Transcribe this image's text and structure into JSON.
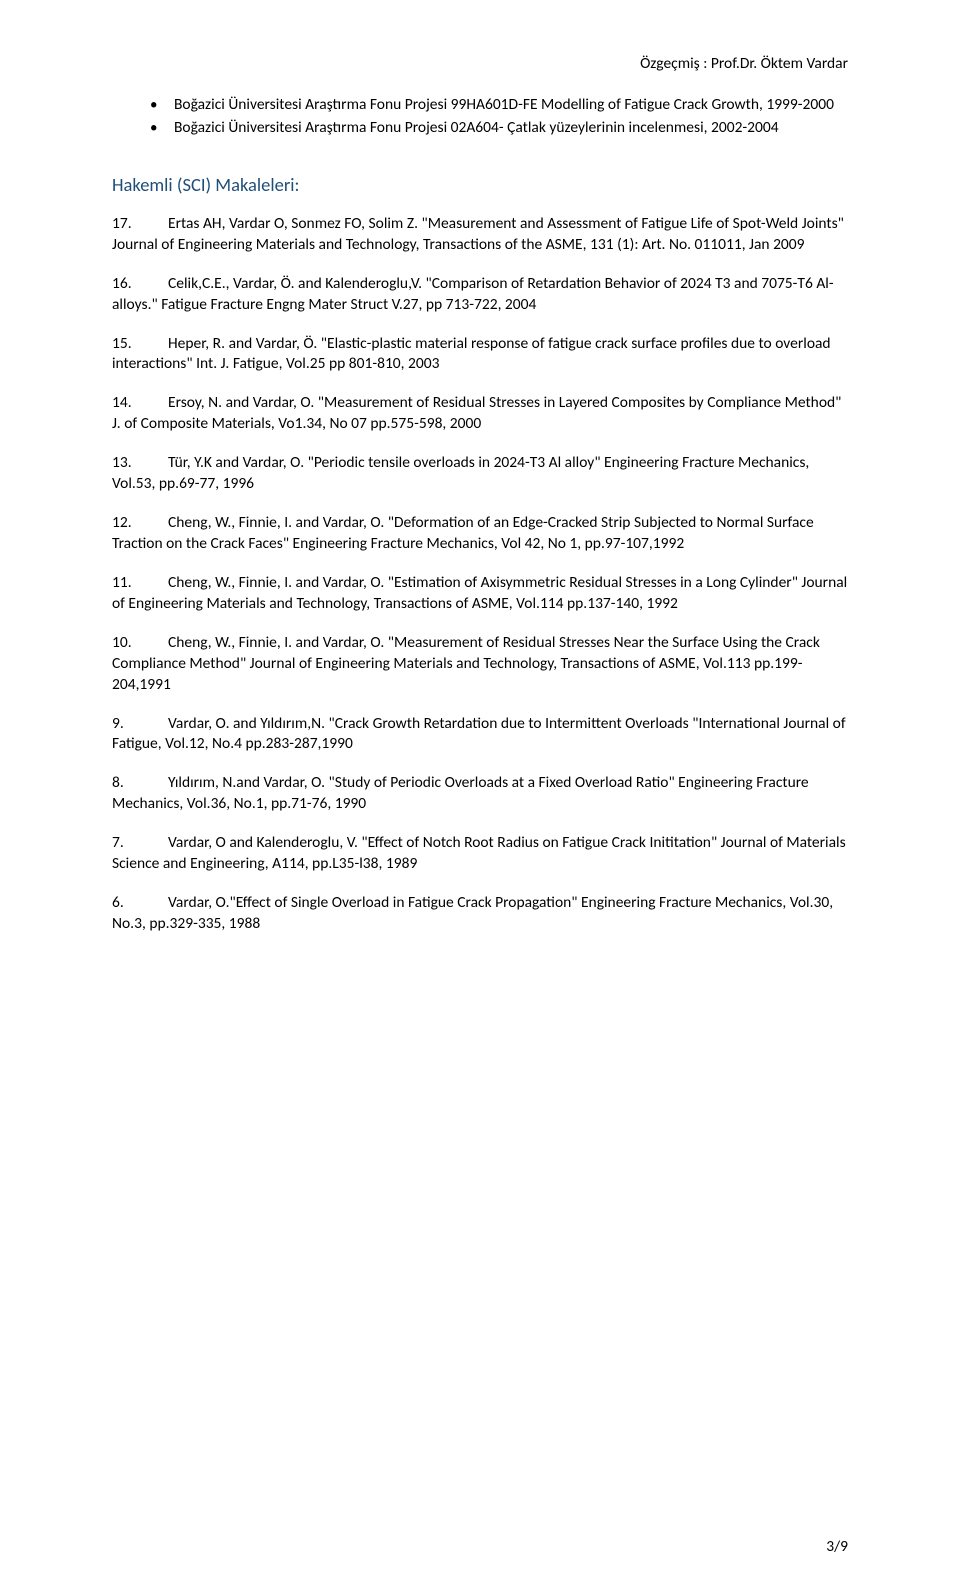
{
  "header": {
    "right_text": "Özgeçmiş : Prof.Dr. Öktem Vardar"
  },
  "bullets": [
    "Boğazici Üniversitesi Araştırma Fonu Projesi 99HA601D-FE Modelling of  Fatigue Crack Growth, 1999-2000",
    "Boğazici Üniversitesi Araştırma Fonu Projesi 02A604- Çatlak yüzeylerinin incelenmesi, 2002-2004"
  ],
  "section_title": "Hakemli (SCI) Makaleleri:",
  "entries": [
    {
      "num": "17.",
      "text": "Ertas AH, Vardar O, Sonmez FO, Solim Z. \"Measurement and Assessment of Fatigue Life of Spot-Weld Joints\" Journal of Engineering Materials and Technology, Transactions of the ASME, 131 (1): Art. No. 011011, Jan 2009"
    },
    {
      "num": "16.",
      "text": "Celik,C.E., Vardar, Ö. and Kalenderoglu,V. \"Comparison of Retardation Behavior of 2024 T3 and 7075-T6 Al- alloys.\" Fatigue Fracture Engng Mater Struct V.27, pp 713-722, 2004"
    },
    {
      "num": "15.",
      "text": "Heper, R. and Vardar, Ö. \"Elastic-plastic material response of fatigue crack surface profiles due to overload interactions\" Int. J. Fatigue, Vol.25 pp 801-810, 2003"
    },
    {
      "num": "14.",
      "text": "Ersoy, N. and Vardar, O. \"Measurement of Residual Stresses in Layered Composites by Compliance Method\" J. of Composite Materials, Vo1.34, No 07 pp.575-598, 2000"
    },
    {
      "num": "13.",
      "text": "Tür, Y.K and Vardar, O. \"Periodic tensile overloads in 2024-T3 Al alloy\" Engineering Fracture Mechanics, Vol.53, pp.69-77, 1996"
    },
    {
      "num": "12.",
      "text": "Cheng, W., Finnie, I. and Vardar, O. \"Deformation of an Edge-Cracked Strip Subjected to Normal Surface Traction on the Crack Faces\" Engineering Fracture Mechanics, Vol 42, No 1, pp.97-107,1992"
    },
    {
      "num": "11.",
      "text": "Cheng, W., Finnie, I. and Vardar, O. \"Estimation of Axisymmetric Residual Stresses in a Long Cylinder\" Journal of Engineering Materials and Technology, Transactions of ASME, Vol.114 pp.137-140, 1992"
    },
    {
      "num": "10.",
      "text": "Cheng, W., Finnie, I. and Vardar, O. \"Measurement of Residual Stresses Near the Surface Using the Crack Compliance Method\" Journal of Engineering Materials and Technology, Transactions of ASME, Vol.113 pp.199-204,1991"
    },
    {
      "num": "9.",
      "text": "Vardar, O. and Yıldırım,N. \"Crack Growth Retardation due to Intermittent Overloads \"International Journal of Fatigue, Vol.12, No.4 pp.283-287,1990"
    },
    {
      "num": "8.",
      "text": "Yıldırım, N.and Vardar, O. \"Study of Periodic Overloads at a Fixed Overload Ratio\" Engineering Fracture Mechanics, Vol.36, No.1, pp.71-76, 1990"
    },
    {
      "num": "7.",
      "text": "Vardar, O and Kalenderoglu, V. \"Effect of Notch Root Radius on Fatigue Crack Inititation\" Journal of Materials Science and Engineering, A114, pp.L35-l38, 1989"
    },
    {
      "num": "6.",
      "text": "Vardar, O.\"Effect of Single Overload in Fatigue Crack Propagation\" Engineering Fracture Mechanics, Vol.30, No.3, pp.329-335, 1988"
    }
  ],
  "footer": {
    "page": "3/9"
  },
  "colors": {
    "text": "#000000",
    "heading": "#1f4e79",
    "background": "#ffffff"
  },
  "typography": {
    "body_fontsize_pt": 11,
    "heading_fontsize_pt": 13,
    "font_family": "Calibri"
  }
}
